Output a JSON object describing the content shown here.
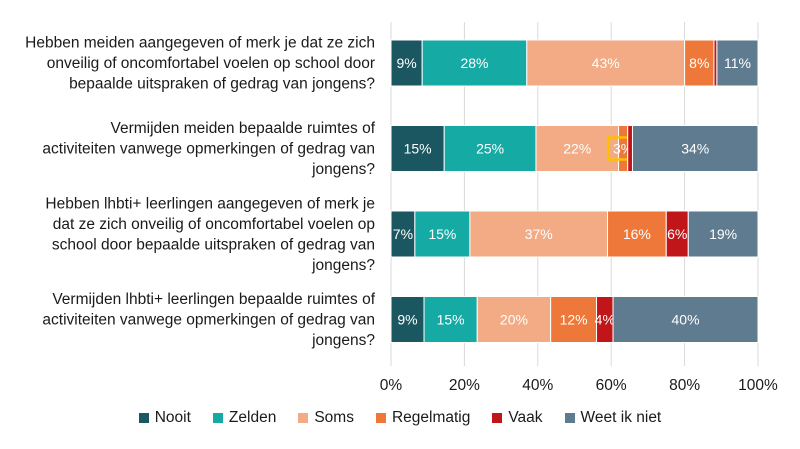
{
  "chart_data": {
    "type": "bar",
    "orientation": "horizontal",
    "stacked": true,
    "title": "",
    "xlabel": "",
    "ylabel": "",
    "xlim": [
      0,
      100
    ],
    "xticks": [
      "0%",
      "20%",
      "40%",
      "60%",
      "80%",
      "100%"
    ],
    "grid": true,
    "legend_position": "bottom",
    "categories": [
      [
        "Hebben meiden aangegeven of merk je dat ze zich",
        "onveilig of oncomfortabel voelen op school door",
        "bepaalde uitspraken of gedrag van jongens?"
      ],
      [
        "Vermijden meiden bepaalde ruimtes of",
        "activiteiten vanwege opmerkingen of gedrag van",
        "jongens?"
      ],
      [
        "Hebben lhbti+ leerlingen  aangegeven of merk je",
        "dat ze zich onveilig of oncomfortabel voelen op",
        "school door bepaalde uitspraken of gedrag van",
        "jongens?"
      ],
      [
        "Vermijden lhbti+ leerlingen bepaalde ruimtes of",
        "activiteiten vanwege opmerkingen of gedrag van",
        "jongens?"
      ]
    ],
    "series": [
      {
        "name": "Nooit",
        "color": "#1b5760",
        "values": [
          8.5,
          14.5,
          6.5,
          9
        ],
        "labels": [
          "9%",
          "15%",
          "7%",
          "9%"
        ]
      },
      {
        "name": "Zelden",
        "color": "#16aaa5",
        "values": [
          28.5,
          25,
          15,
          14.5
        ],
        "labels": [
          "28%",
          "25%",
          "15%",
          "15%"
        ]
      },
      {
        "name": "Soms",
        "color": "#f2ab84",
        "values": [
          43,
          22.5,
          37.5,
          20
        ],
        "labels": [
          "43%",
          "22%",
          "37%",
          "20%"
        ]
      },
      {
        "name": "Regelmatig",
        "color": "#ee7839",
        "values": [
          8,
          2.5,
          16,
          12.5
        ],
        "labels": [
          "8%",
          "3%",
          "16%",
          "12%"
        ]
      },
      {
        "name": "Vaak",
        "color": "#c01519",
        "values": [
          0.8,
          1.3,
          6,
          4.5
        ],
        "labels": [
          "",
          "",
          "6%",
          "4%"
        ]
      },
      {
        "name": "Weet ik niet",
        "color": "#5f7b8f",
        "values": [
          11.2,
          34.2,
          19,
          39.5
        ],
        "labels": [
          "11%",
          "34%",
          "19%",
          "40%"
        ]
      }
    ],
    "highlight": {
      "category_index": 1,
      "series_index": 3,
      "outline_color": "#ffc000"
    }
  }
}
